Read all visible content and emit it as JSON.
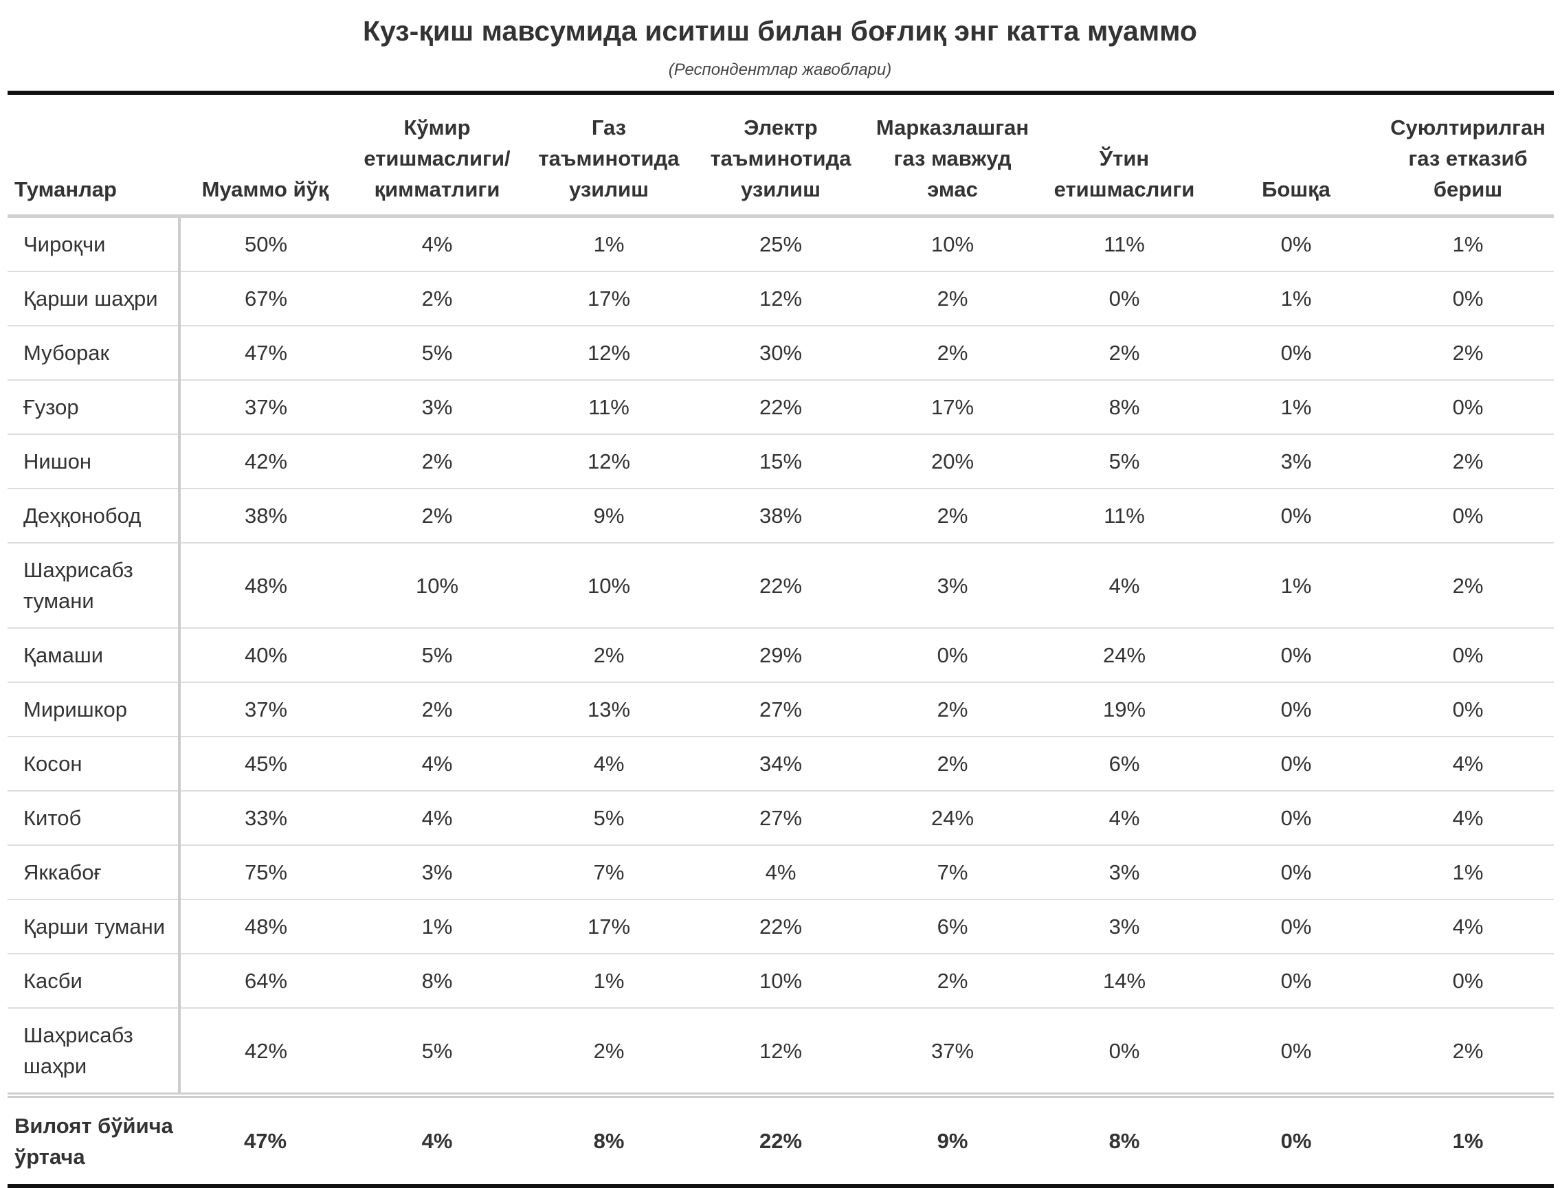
{
  "chart_data": {
    "type": "table",
    "title": "Куз-қиш мавсумида иситиш билан боғлиқ энг катта муаммо",
    "subtitle": "(Респондентлар жавоблари)",
    "columns": [
      "Туманлар",
      "Муаммо йўқ",
      "Кўмир етишмаслиги/ қимматлиги",
      "Газ таъминотида узилиш",
      "Электр таъминотида узилиш",
      "Марказлашган газ мавжуд эмас",
      "Ўтин етишмаслиги",
      "Бошқа",
      "Суюлтирилган газ етказиб бериш"
    ],
    "rows": [
      {
        "name": "Чироқчи",
        "values": [
          "50%",
          "4%",
          "1%",
          "25%",
          "10%",
          "11%",
          "0%",
          "1%"
        ]
      },
      {
        "name": "Қарши шаҳри",
        "values": [
          "67%",
          "2%",
          "17%",
          "12%",
          "2%",
          "0%",
          "1%",
          "0%"
        ]
      },
      {
        "name": "Муборак",
        "values": [
          "47%",
          "5%",
          "12%",
          "30%",
          "2%",
          "2%",
          "0%",
          "2%"
        ]
      },
      {
        "name": "Ғузор",
        "values": [
          "37%",
          "3%",
          "11%",
          "22%",
          "17%",
          "8%",
          "1%",
          "0%"
        ]
      },
      {
        "name": "Нишон",
        "values": [
          "42%",
          "2%",
          "12%",
          "15%",
          "20%",
          "5%",
          "3%",
          "2%"
        ]
      },
      {
        "name": "Деҳқонобод",
        "values": [
          "38%",
          "2%",
          "9%",
          "38%",
          "2%",
          "11%",
          "0%",
          "0%"
        ]
      },
      {
        "name": "Шаҳрисабз тумани",
        "values": [
          "48%",
          "10%",
          "10%",
          "22%",
          "3%",
          "4%",
          "1%",
          "2%"
        ]
      },
      {
        "name": "Қамаши",
        "values": [
          "40%",
          "5%",
          "2%",
          "29%",
          "0%",
          "24%",
          "0%",
          "0%"
        ]
      },
      {
        "name": "Миришкор",
        "values": [
          "37%",
          "2%",
          "13%",
          "27%",
          "2%",
          "19%",
          "0%",
          "0%"
        ]
      },
      {
        "name": "Косон",
        "values": [
          "45%",
          "4%",
          "4%",
          "34%",
          "2%",
          "6%",
          "0%",
          "4%"
        ]
      },
      {
        "name": "Китоб",
        "values": [
          "33%",
          "4%",
          "5%",
          "27%",
          "24%",
          "4%",
          "0%",
          "4%"
        ]
      },
      {
        "name": "Яккабоғ",
        "values": [
          "75%",
          "3%",
          "7%",
          "4%",
          "7%",
          "3%",
          "0%",
          "1%"
        ]
      },
      {
        "name": "Қарши тумани",
        "values": [
          "48%",
          "1%",
          "17%",
          "22%",
          "6%",
          "3%",
          "0%",
          "4%"
        ]
      },
      {
        "name": "Касби",
        "values": [
          "64%",
          "8%",
          "1%",
          "10%",
          "2%",
          "14%",
          "0%",
          "0%"
        ]
      },
      {
        "name": "Шаҳрисабз шаҳри",
        "values": [
          "42%",
          "5%",
          "2%",
          "12%",
          "37%",
          "0%",
          "0%",
          "2%"
        ]
      }
    ],
    "total": {
      "name": "Вилоят бўйича ўртача",
      "values": [
        "47%",
        "4%",
        "8%",
        "22%",
        "9%",
        "8%",
        "0%",
        "1%"
      ]
    }
  }
}
